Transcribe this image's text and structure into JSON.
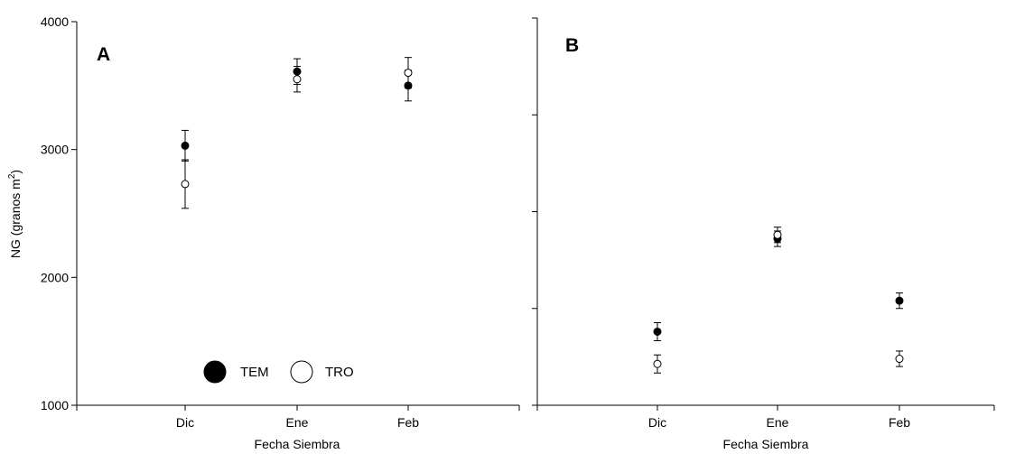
{
  "chart_data": [
    {
      "type": "scatter",
      "panel_label": "A",
      "categories": [
        "Dic",
        "Ene",
        "Feb"
      ],
      "xlabel": "Fecha Siembra",
      "ylabel": "NG (granos m",
      "ylabel_sup": "2",
      "ylabel_close": ")",
      "ylim": [
        1000,
        4000
      ],
      "yticks": [
        "1000",
        "2000",
        "3000",
        "4000"
      ],
      "grid": false,
      "legend": {
        "placement": "bottom-center",
        "entries": [
          {
            "label": "TEM",
            "marker": "filled"
          },
          {
            "label": "TRO",
            "marker": "open"
          }
        ]
      },
      "series": [
        {
          "name": "TEM",
          "marker": "filled",
          "values": [
            3030,
            3610,
            3500
          ],
          "err": [
            120,
            100,
            120
          ]
        },
        {
          "name": "TRO",
          "marker": "open",
          "values": [
            2730,
            3550,
            3600
          ],
          "err": [
            190,
            100,
            120
          ]
        }
      ]
    },
    {
      "type": "scatter",
      "panel_label": "B",
      "categories": [
        "Dic",
        "Ene",
        "Feb"
      ],
      "xlabel": "Fecha Siembra",
      "ylim": [
        1000,
        4000
      ],
      "grid": false,
      "series": [
        {
          "name": "TEM",
          "marker": "filled",
          "values": [
            1570,
            2290,
            1810
          ],
          "err": [
            70,
            60,
            60
          ]
        },
        {
          "name": "TRO",
          "marker": "open",
          "values": [
            1320,
            2320,
            1360
          ],
          "err": [
            70,
            60,
            60
          ]
        }
      ]
    }
  ],
  "colors": {
    "marker": "#000000",
    "background": "#ffffff"
  }
}
